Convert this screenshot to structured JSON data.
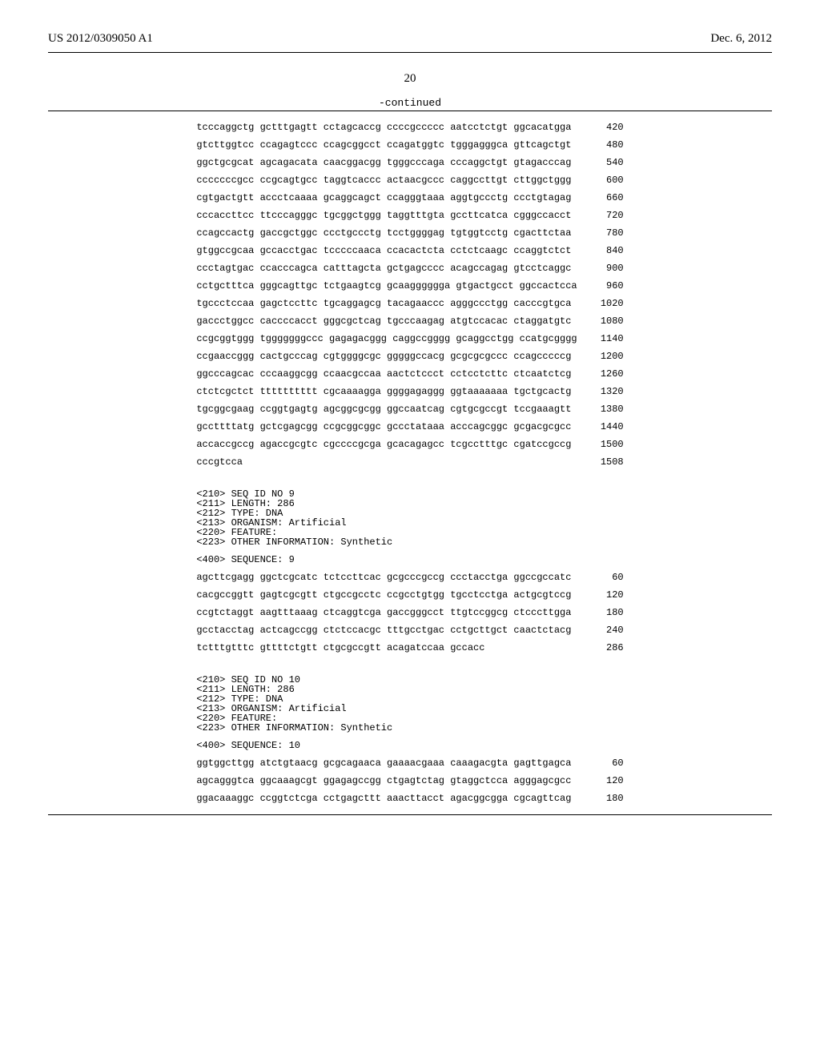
{
  "header": {
    "left": "US 2012/0309050 A1",
    "right": "Dec. 6, 2012"
  },
  "pagenum": "20",
  "continued": "-continued",
  "fontsize": {
    "header": 15,
    "pagenum": 15,
    "continued": 13,
    "mono": 12
  },
  "colors": {
    "text": "#000000",
    "bg": "#ffffff",
    "rule": "#000000"
  },
  "block1": {
    "rows": [
      {
        "seq": "tcccaggctg gctttgagtt cctagcaccg ccccgccccc aatcctctgt ggcacatgga",
        "n": "420"
      },
      {
        "seq": "gtcttggtcc ccagagtccc ccagcggcct ccagatggtc tgggagggca gttcagctgt",
        "n": "480"
      },
      {
        "seq": "ggctgcgcat agcagacata caacggacgg tgggcccaga cccaggctgt gtagacccag",
        "n": "540"
      },
      {
        "seq": "cccccccgcc ccgcagtgcc taggtcaccc actaacgccc caggccttgt cttggctggg",
        "n": "600"
      },
      {
        "seq": "cgtgactgtt accctcaaaa gcaggcagct ccagggtaaa aggtgccctg ccctgtagag",
        "n": "660"
      },
      {
        "seq": "cccaccttcc ttcccagggc tgcggctggg taggtttgta gccttcatca cgggccacct",
        "n": "720"
      },
      {
        "seq": "ccagccactg gaccgctggc ccctgccctg tcctggggag tgtggtcctg cgacttctaa",
        "n": "780"
      },
      {
        "seq": "gtggccgcaa gccacctgac tcccccaaca ccacactcta cctctcaagc ccaggtctct",
        "n": "840"
      },
      {
        "seq": "ccctagtgac ccacccagca catttagcta gctgagcccc acagccagag gtcctcaggc",
        "n": "900"
      },
      {
        "seq": "cctgctttca gggcagttgc tctgaagtcg gcaagggggga gtgactgcct ggccactcca",
        "n": "960"
      },
      {
        "seq": "tgccctccaa gagctccttc tgcaggagcg tacagaaccc agggccctgg cacccgtgca",
        "n": "1020"
      },
      {
        "seq": "gaccctggcc caccccacct gggcgctcag tgcccaagag atgtccacac ctaggatgtc",
        "n": "1080"
      },
      {
        "seq": "ccgcggtggg tgggggggccc gagagacggg caggccgggg gcaggcctgg ccatgcgggg",
        "n": "1140"
      },
      {
        "seq": "ccgaaccggg cactgcccag cgtggggcgc gggggccacg gcgcgcgccc ccagcccccg",
        "n": "1200"
      },
      {
        "seq": "ggcccagcac cccaaggcgg ccaacgccaa aactctccct cctcctcttc ctcaatctcg",
        "n": "1260"
      },
      {
        "seq": "ctctcgctct tttttttttt cgcaaaagga ggggagaggg ggtaaaaaaa tgctgcactg",
        "n": "1320"
      },
      {
        "seq": "tgcggcgaag ccggtgagtg agcggcgcgg ggccaatcag cgtgcgccgt tccgaaagtt",
        "n": "1380"
      },
      {
        "seq": "gccttttatg gctcgagcgg ccgcggcggc gccctataaa acccagcggc gcgacgcgcc",
        "n": "1440"
      },
      {
        "seq": "accaccgccg agaccgcgtc cgccccgcga gcacagagcc tcgcctttgc cgatccgccg",
        "n": "1500"
      },
      {
        "seq": "cccgtcca",
        "n": "1508"
      }
    ]
  },
  "meta9": {
    "lines": [
      "<210> SEQ ID NO 9",
      "<211> LENGTH: 286",
      "<212> TYPE: DNA",
      "<213> ORGANISM: Artificial",
      "<220> FEATURE:",
      "<223> OTHER INFORMATION: Synthetic"
    ],
    "seqline": "<400> SEQUENCE: 9"
  },
  "block9": {
    "rows": [
      {
        "seq": "agcttcgagg ggctcgcatc tctccttcac gcgcccgccg ccctacctga ggccgccatc",
        "n": "60"
      },
      {
        "seq": "cacgccggtt gagtcgcgtt ctgccgcctc ccgcctgtgg tgcctcctga actgcgtccg",
        "n": "120"
      },
      {
        "seq": "ccgtctaggt aagtttaaag ctcaggtcga gaccgggcct ttgtccggcg ctcccttgga",
        "n": "180"
      },
      {
        "seq": "gcctacctag actcagccgg ctctccacgc tttgcctgac cctgcttgct caactctacg",
        "n": "240"
      },
      {
        "seq": "tctttgtttc gttttctgtt ctgcgccgtt acagatccaa gccacc",
        "n": "286"
      }
    ]
  },
  "meta10": {
    "lines": [
      "<210> SEQ ID NO 10",
      "<211> LENGTH: 286",
      "<212> TYPE: DNA",
      "<213> ORGANISM: Artificial",
      "<220> FEATURE:",
      "<223> OTHER INFORMATION: Synthetic"
    ],
    "seqline": "<400> SEQUENCE: 10"
  },
  "block10": {
    "rows": [
      {
        "seq": "ggtggcttgg atctgtaacg gcgcagaaca gaaaacgaaa caaagacgta gagttgagca",
        "n": "60"
      },
      {
        "seq": "agcagggtca ggcaaagcgt ggagagccgg ctgagtctag gtaggctcca agggagcgcc",
        "n": "120"
      },
      {
        "seq": "ggacaaaggc ccggtctcga cctgagcttt aaacttacct agacggcgga cgcagttcag",
        "n": "180"
      }
    ]
  }
}
